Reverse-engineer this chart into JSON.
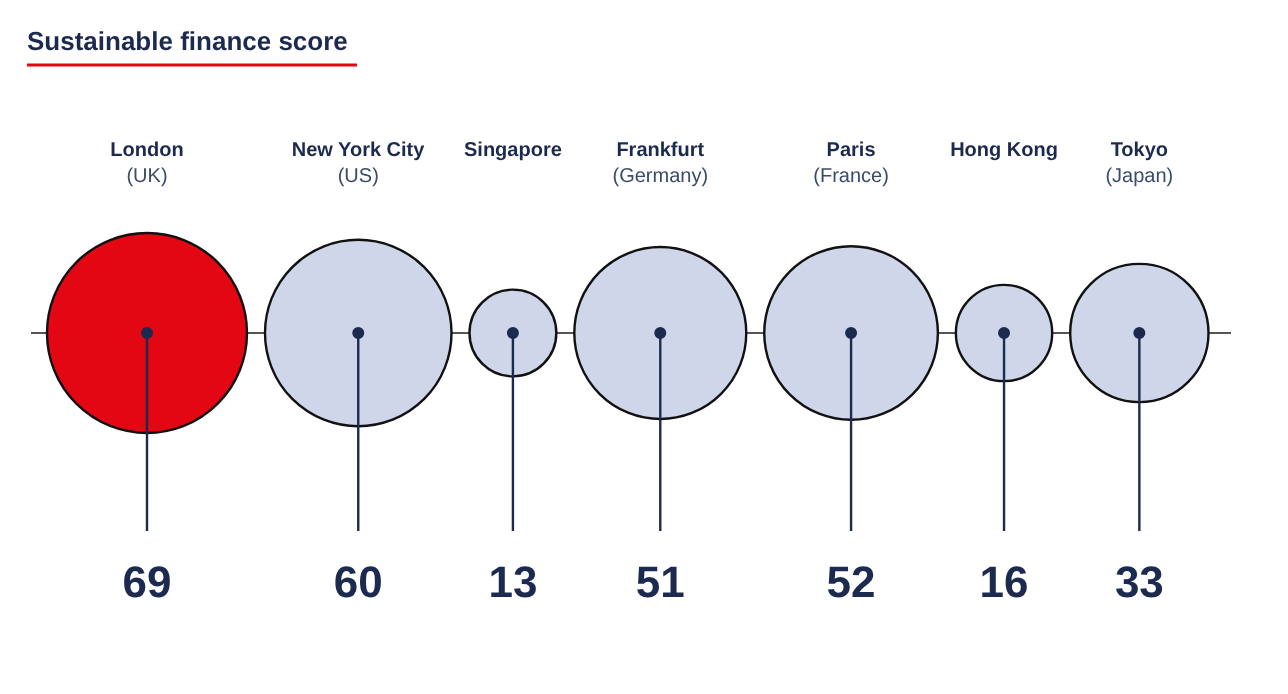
{
  "chart_data": {
    "type": "other",
    "title": "Sustainable finance score",
    "categories": [
      "London\n(UK)",
      "New York City\n(US)",
      "Singapore",
      "Frankfurt\n(Germany)",
      "Paris\n(France)",
      "Hong Kong",
      "Tokyo\n(Japan)"
    ],
    "values": [
      69,
      60,
      13,
      51,
      52,
      16,
      33
    ],
    "colors": [
      "#e30613",
      "#cfd6ea",
      "#cfd6ea",
      "#cfd6ea",
      "#cfd6ea",
      "#cfd6ea",
      "#cfd6ea"
    ],
    "data_labels": true
  }
}
